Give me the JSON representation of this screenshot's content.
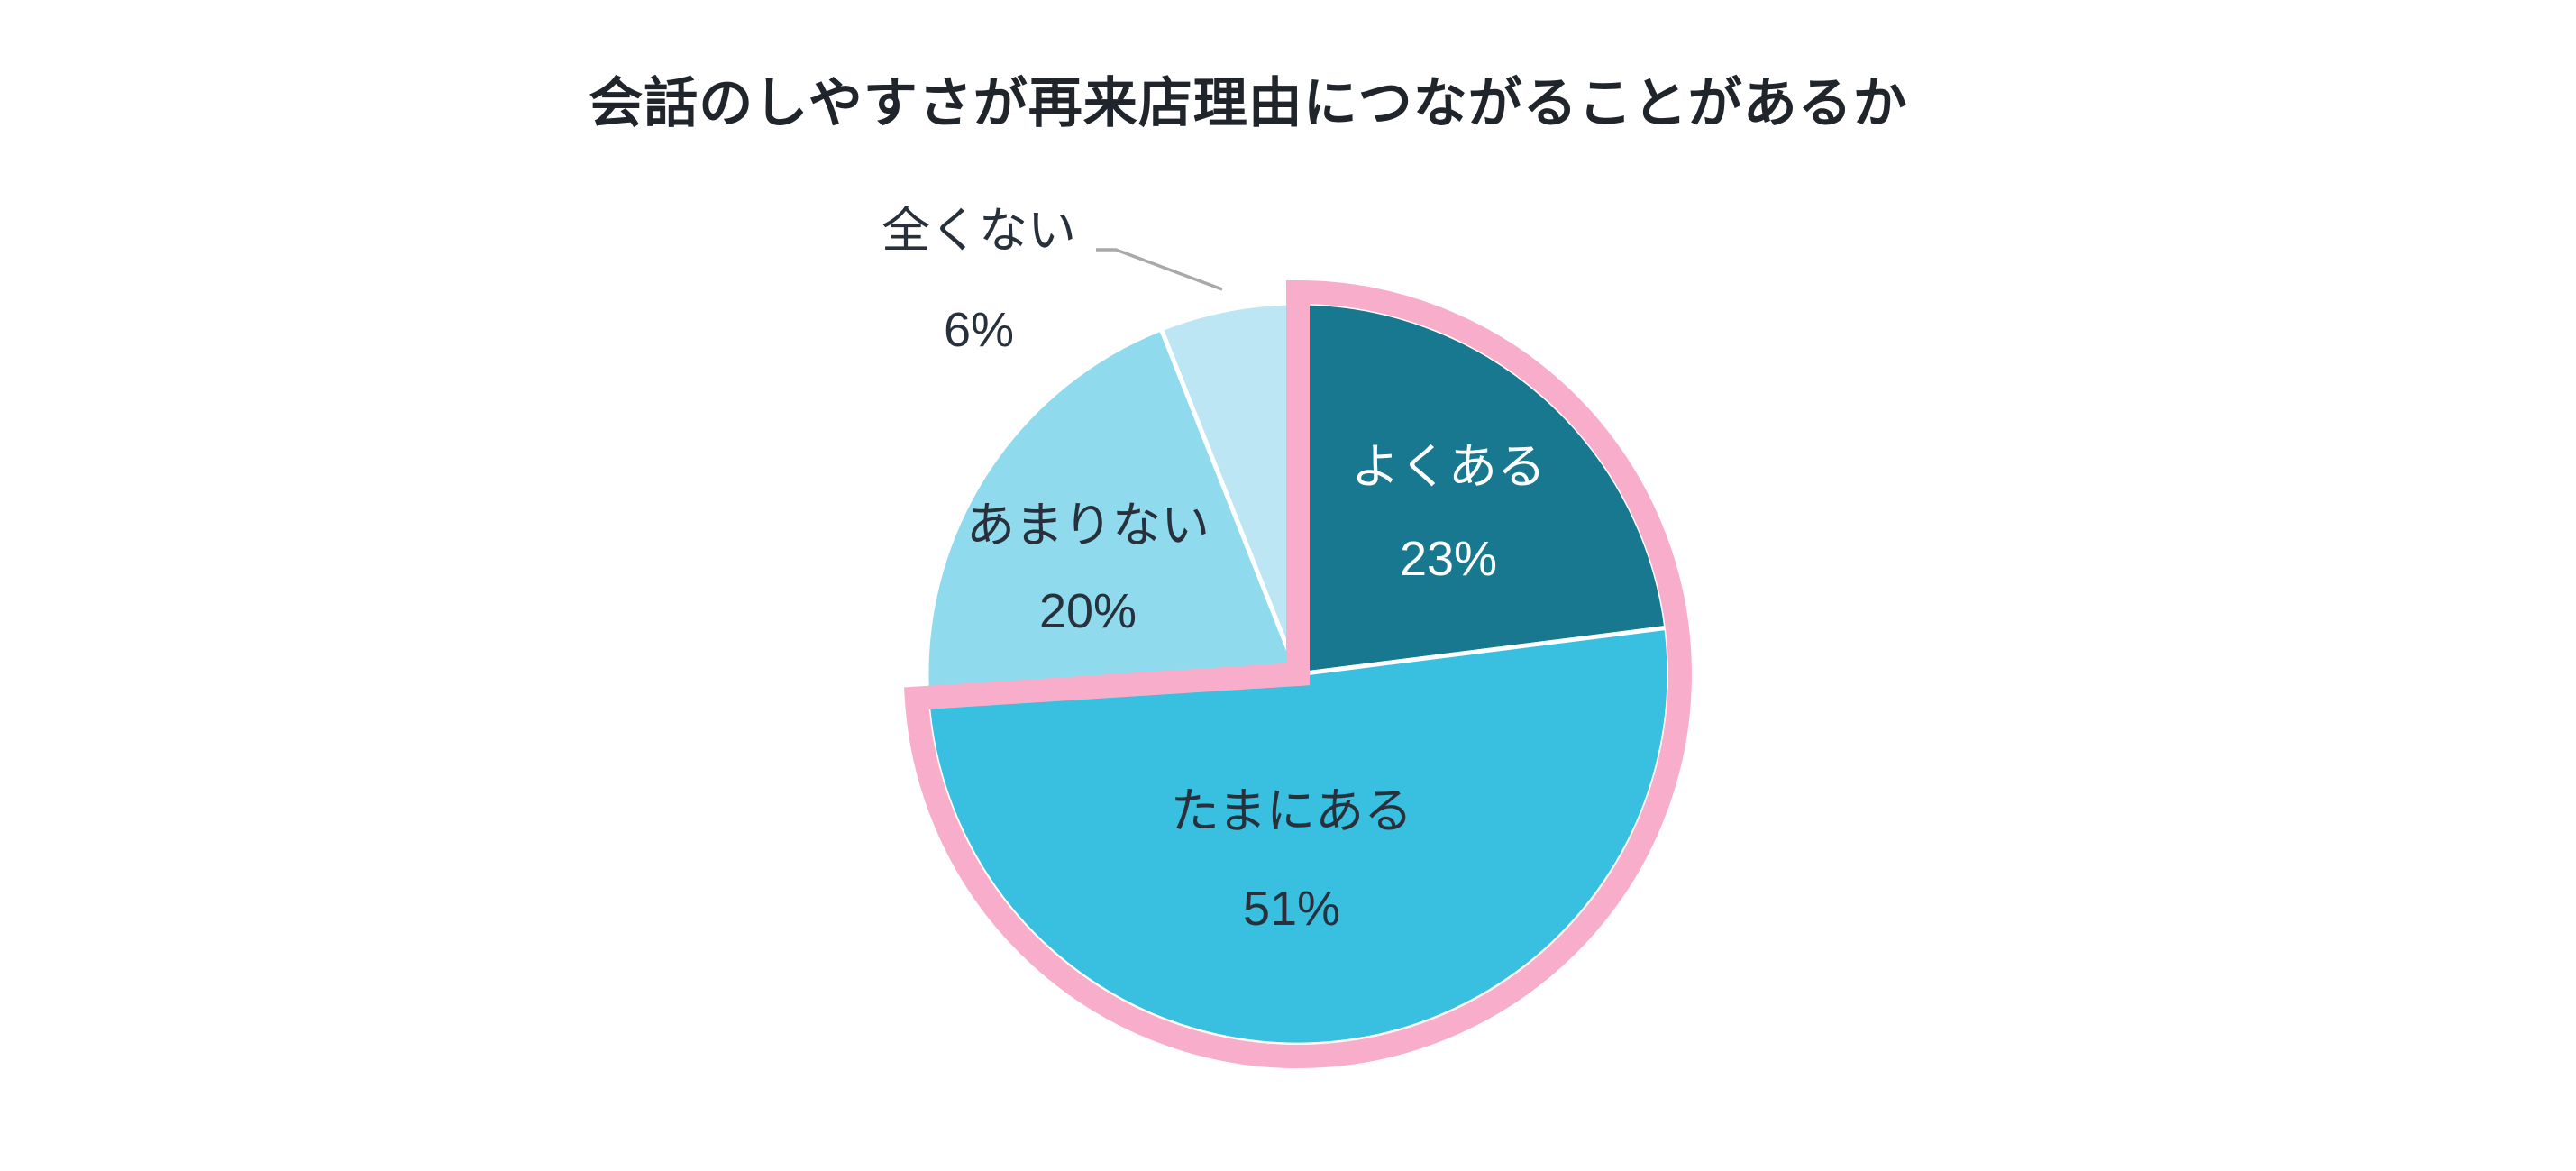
{
  "chart_data": {
    "type": "pie",
    "title": "会話のしやすさが再来店理由につながることがあるか",
    "title_color": "#20252C",
    "background": "#FFFFFF",
    "unit": "%",
    "legend": "none",
    "start_angle_deg": 0,
    "direction": "clockwise",
    "categories": [
      "よくある",
      "たまにある",
      "あまりない",
      "全くない"
    ],
    "values": [
      23,
      51,
      20,
      6
    ],
    "slices": [
      {
        "label": "よくある",
        "value": 23,
        "display_value": "23%",
        "color": "#17788F",
        "label_color": "#FFFFFF",
        "label_position": "inside",
        "highlighted": true
      },
      {
        "label": "たまにある",
        "value": 51,
        "display_value": "51%",
        "color": "#39BFDF",
        "label_color": "#28313B",
        "label_position": "inside",
        "highlighted": true
      },
      {
        "label": "あまりない",
        "value": 20,
        "display_value": "20%",
        "color": "#8FDAED",
        "label_color": "#28313B",
        "label_position": "inside",
        "highlighted": false
      },
      {
        "label": "全くない",
        "value": 6,
        "display_value": "6%",
        "color": "#BCE6F3",
        "label_color": "#28313B",
        "label_position": "outside-callout",
        "highlighted": false
      }
    ],
    "slice_separator_color": "#FFFFFF",
    "highlight_outline": {
      "color": "#F8AECA",
      "covers_labels": [
        "よくある",
        "たまにある"
      ],
      "covers_total_pct": 74
    },
    "callout": {
      "slice": "全くない",
      "line_color": "#A9A9A9"
    }
  }
}
